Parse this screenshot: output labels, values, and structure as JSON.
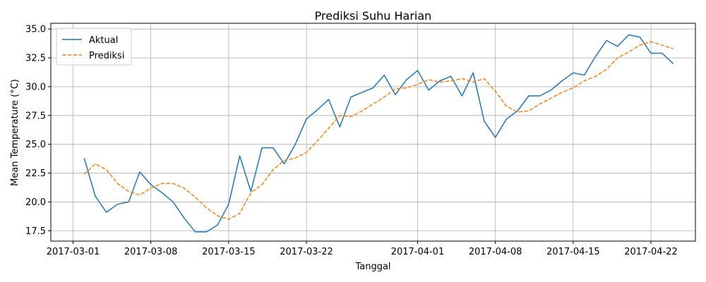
{
  "chart_data": {
    "type": "line",
    "title": "Prediksi Suhu Harian",
    "xlabel": "Tanggal",
    "ylabel": "Mean Temperature (°C)",
    "xlim": [
      "2017-02-27",
      "2017-04-26"
    ],
    "ylim": [
      16.6,
      35.5
    ],
    "grid": true,
    "legend_position": "top-left",
    "x_ticks": [
      "2017-03-01",
      "2017-03-08",
      "2017-03-15",
      "2017-03-22",
      "2017-04-01",
      "2017-04-08",
      "2017-04-15",
      "2017-04-22"
    ],
    "y_ticks": [
      "17.5",
      "20.0",
      "22.5",
      "25.0",
      "27.5",
      "30.0",
      "32.5",
      "35.0"
    ],
    "x": [
      "2017-03-02",
      "2017-03-03",
      "2017-03-04",
      "2017-03-05",
      "2017-03-06",
      "2017-03-07",
      "2017-03-08",
      "2017-03-09",
      "2017-03-10",
      "2017-03-11",
      "2017-03-12",
      "2017-03-13",
      "2017-03-14",
      "2017-03-15",
      "2017-03-16",
      "2017-03-17",
      "2017-03-18",
      "2017-03-19",
      "2017-03-20",
      "2017-03-21",
      "2017-03-22",
      "2017-03-23",
      "2017-03-24",
      "2017-03-25",
      "2017-03-26",
      "2017-03-27",
      "2017-03-28",
      "2017-03-29",
      "2017-03-30",
      "2017-03-31",
      "2017-04-01",
      "2017-04-02",
      "2017-04-03",
      "2017-04-04",
      "2017-04-05",
      "2017-04-06",
      "2017-04-07",
      "2017-04-08",
      "2017-04-09",
      "2017-04-10",
      "2017-04-11",
      "2017-04-12",
      "2017-04-13",
      "2017-04-14",
      "2017-04-15",
      "2017-04-16",
      "2017-04-17",
      "2017-04-18",
      "2017-04-19",
      "2017-04-20",
      "2017-04-21",
      "2017-04-22",
      "2017-04-23",
      "2017-04-24"
    ],
    "series": [
      {
        "name": "Aktual",
        "color": "#1f77b4",
        "style": "solid",
        "values": [
          23.8,
          20.5,
          19.1,
          19.8,
          20.0,
          22.6,
          21.5,
          20.8,
          20.0,
          18.6,
          17.4,
          17.4,
          18.0,
          19.8,
          24.0,
          20.9,
          24.7,
          24.7,
          23.3,
          25.0,
          27.2,
          28.0,
          28.9,
          26.5,
          29.1,
          29.5,
          29.9,
          31.0,
          29.3,
          30.6,
          31.4,
          29.7,
          30.5,
          30.9,
          29.2,
          31.2,
          27.0,
          25.6,
          27.2,
          27.9,
          29.2,
          29.2,
          29.7,
          30.5,
          31.2,
          31.0,
          32.6,
          34.0,
          33.5,
          34.5,
          34.3,
          32.9,
          32.9,
          32.0
        ]
      },
      {
        "name": "Prediksi",
        "color": "#ff7f0e",
        "style": "dashed",
        "values": [
          22.4,
          23.3,
          22.8,
          21.6,
          20.9,
          20.6,
          21.2,
          21.6,
          21.6,
          21.2,
          20.4,
          19.5,
          18.8,
          18.5,
          19.0,
          20.8,
          21.5,
          22.8,
          23.6,
          23.8,
          24.3,
          25.3,
          26.4,
          27.5,
          27.4,
          27.9,
          28.5,
          29.1,
          29.8,
          29.9,
          30.2,
          30.6,
          30.4,
          30.5,
          30.7,
          30.4,
          30.7,
          29.6,
          28.3,
          27.8,
          27.9,
          28.5,
          29.0,
          29.5,
          29.9,
          30.5,
          30.9,
          31.5,
          32.5,
          33.0,
          33.6,
          33.9,
          33.6,
          33.3
        ]
      }
    ]
  }
}
